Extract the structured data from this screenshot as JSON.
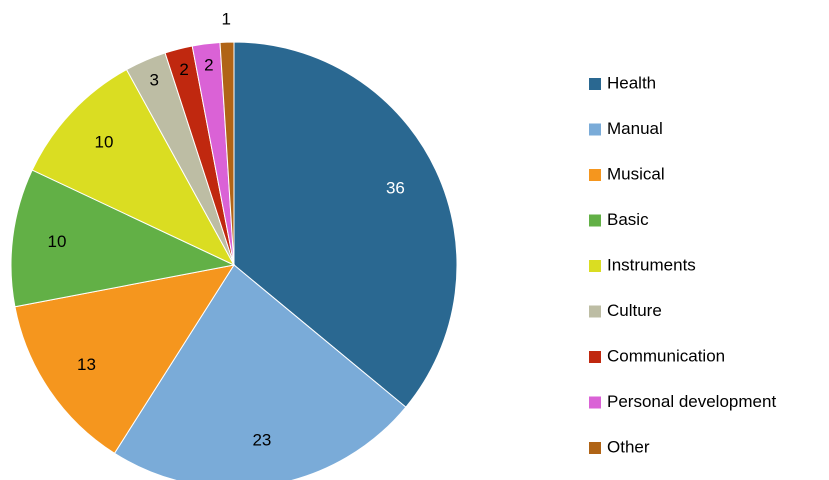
{
  "chart_data": {
    "type": "pie",
    "categories": [
      "Health",
      "Manual",
      "Musical",
      "Basic",
      "Instruments",
      "Culture",
      "Communication",
      "Personal development",
      "Other"
    ],
    "values": [
      36,
      23,
      13,
      10,
      10,
      3,
      2,
      2,
      1
    ],
    "colors": [
      "#2a6891",
      "#7aabd8",
      "#f5961e",
      "#62b046",
      "#dadd22",
      "#bdbda4",
      "#c0280f",
      "#da62d6",
      "#b06416"
    ],
    "legend": "right"
  }
}
